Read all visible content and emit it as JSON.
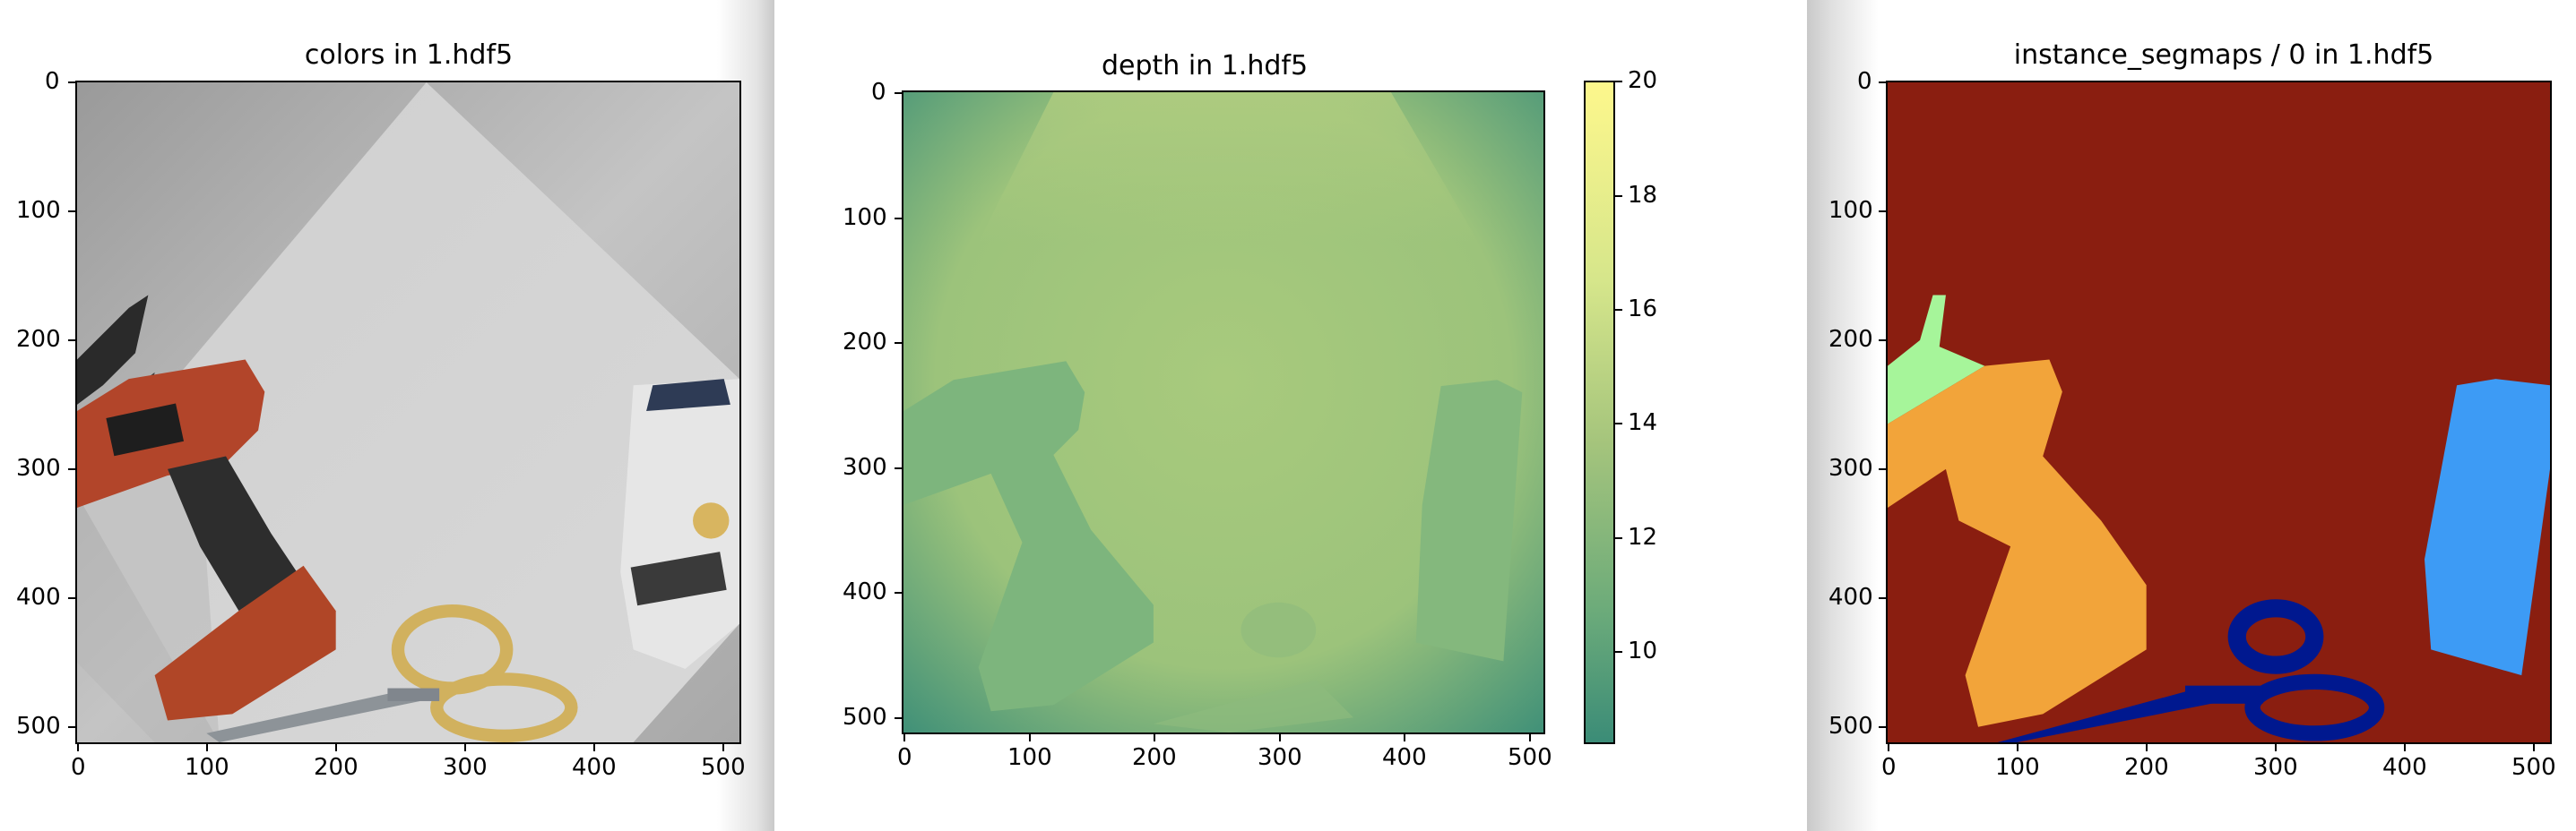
{
  "figures": [
    {
      "title": "colors in 1.hdf5",
      "x_ticks": [
        "0",
        "100",
        "200",
        "300",
        "400",
        "500"
      ],
      "y_ticks": [
        "0",
        "100",
        "200",
        "300",
        "400",
        "500"
      ]
    },
    {
      "title": "depth in 1.hdf5",
      "x_ticks": [
        "0",
        "100",
        "200",
        "300",
        "400",
        "500"
      ],
      "y_ticks": [
        "0",
        "100",
        "200",
        "300",
        "400",
        "500"
      ],
      "colorbar_ticks": [
        "20",
        "18",
        "16",
        "14",
        "12",
        "10"
      ]
    },
    {
      "title": "instance_segmaps / 0 in 1.hdf5",
      "x_ticks": [
        "0",
        "100",
        "200",
        "300",
        "400",
        "500"
      ],
      "y_ticks": [
        "0",
        "100",
        "200",
        "300",
        "400",
        "500"
      ]
    }
  ],
  "colors": {
    "seg_background": "#8a1e10",
    "seg_drill": "#f2a43a",
    "seg_clamp": "#a6f59a",
    "seg_bottle": "#3d9bf5",
    "seg_scissors": "#00188f",
    "depth_low": "#3b8c77",
    "depth_mid": "#a4c47c",
    "depth_high": "#fdf78c"
  }
}
